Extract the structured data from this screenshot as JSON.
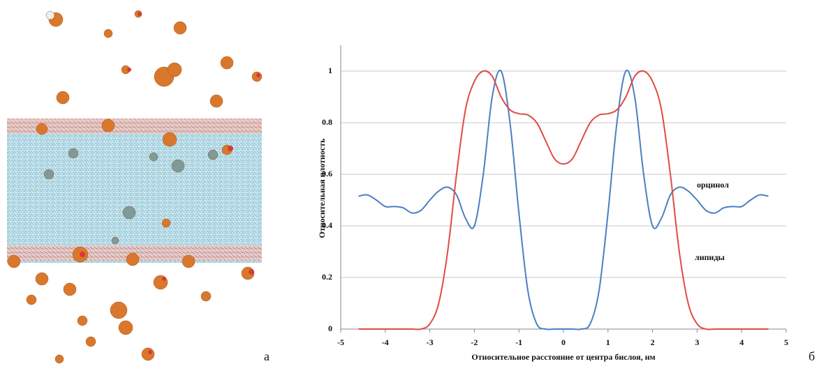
{
  "chart_data": {
    "type": "line",
    "x_label": "Относительное расстояние от центра бислоя, нм",
    "y_label": "Относительная плотность",
    "panel_labels": [
      "а",
      "б"
    ],
    "x": [
      -4.6,
      -4.4,
      -4.2,
      -4.0,
      -3.8,
      -3.6,
      -3.4,
      -3.2,
      -3.0,
      -2.8,
      -2.6,
      -2.4,
      -2.2,
      -2.0,
      -1.8,
      -1.6,
      -1.4,
      -1.2,
      -1.0,
      -0.8,
      -0.6,
      -0.4,
      -0.2,
      0,
      0.2,
      0.4,
      0.6,
      0.8,
      1.0,
      1.2,
      1.4,
      1.6,
      1.8,
      2.0,
      2.2,
      2.4,
      2.6,
      2.8,
      3.0,
      3.2,
      3.4,
      3.6,
      3.8,
      4.0,
      4.2,
      4.4,
      4.6
    ],
    "series": [
      {
        "name": "орцинол",
        "color": "#4a7fc1",
        "values": [
          0.515,
          0.52,
          0.5,
          0.475,
          0.475,
          0.47,
          0.45,
          0.46,
          0.5,
          0.535,
          0.55,
          0.52,
          0.43,
          0.4,
          0.6,
          0.9,
          1.0,
          0.8,
          0.45,
          0.15,
          0.02,
          0,
          0,
          0,
          0,
          0,
          0.02,
          0.15,
          0.45,
          0.8,
          1.0,
          0.9,
          0.6,
          0.4,
          0.43,
          0.52,
          0.55,
          0.535,
          0.5,
          0.46,
          0.45,
          0.47,
          0.475,
          0.475,
          0.5,
          0.52,
          0.515
        ]
      },
      {
        "name": "липиды",
        "color": "#e04b45",
        "values": [
          0,
          0,
          0,
          0,
          0,
          0,
          0,
          0,
          0.02,
          0.1,
          0.3,
          0.6,
          0.85,
          0.96,
          1.0,
          0.98,
          0.9,
          0.85,
          0.835,
          0.83,
          0.8,
          0.73,
          0.66,
          0.64,
          0.66,
          0.73,
          0.8,
          0.83,
          0.835,
          0.85,
          0.9,
          0.98,
          1.0,
          0.96,
          0.85,
          0.6,
          0.3,
          0.1,
          0.02,
          0,
          0,
          0,
          0,
          0,
          0,
          0,
          0
        ]
      }
    ],
    "xlim": [
      -5,
      5
    ],
    "xticks": [
      -5,
      -4,
      -3,
      -2,
      -1,
      0,
      1,
      2,
      3,
      4,
      5
    ],
    "ylim": [
      0,
      1.1
    ],
    "yticks": [
      0,
      0.2,
      0.4,
      0.6,
      0.8,
      1
    ],
    "grid": true
  }
}
